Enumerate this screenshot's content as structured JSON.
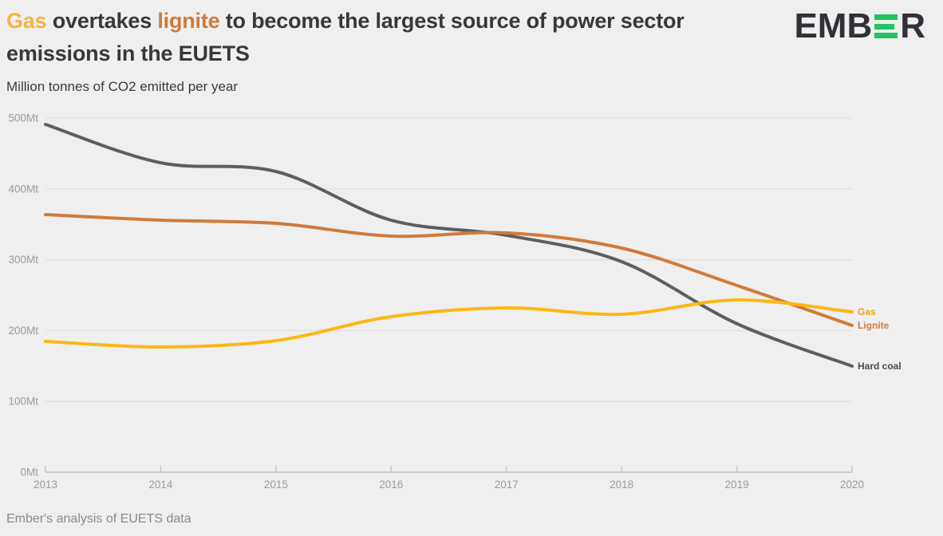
{
  "header": {
    "title_segments": [
      {
        "text": "Gas",
        "color": "#F5B53E"
      },
      {
        "text": " overtakes ",
        "color": "#38383A"
      },
      {
        "text": "lignite",
        "color": "#CF7A3B"
      },
      {
        "text": " to become the largest source of power sector emissions in the EUETS",
        "color": "#38383A"
      }
    ],
    "subtitle": "Million tonnes of CO2 emitted per year",
    "logo": {
      "prefix": "EMB",
      "suffix": "R",
      "bar_color": "#1FC463",
      "text_color": "#303036"
    }
  },
  "chart_data": {
    "type": "line",
    "title": "Gas overtakes lignite to become the largest source of power sector emissions in the EUETS",
    "ylabel": "Million tonnes of CO2 emitted per year",
    "xlabel": "",
    "x": [
      2013,
      2014,
      2015,
      2016,
      2017,
      2018,
      2019,
      2020
    ],
    "xtick_labels": [
      "2013",
      "2014",
      "2015",
      "2016",
      "2017",
      "2018",
      "2019",
      "2020"
    ],
    "ylim": [
      0,
      500
    ],
    "yticks": [
      0,
      100,
      200,
      300,
      400,
      500
    ],
    "ytick_labels": [
      "0Mt",
      "100Mt",
      "200Mt",
      "300Mt",
      "400Mt",
      "500Mt"
    ],
    "grid": "horizontal",
    "grid_color": "#DBDBDB",
    "axis_color": "#C8C8C8",
    "tick_label_color": "#9B9B9B",
    "legend_position": "right-end-labels",
    "series": [
      {
        "name": "Hard coal",
        "color": "#5E5E5E",
        "label_color": "#4A4A4A",
        "values": [
          491,
          437,
          424,
          356,
          335,
          297,
          210,
          150
        ]
      },
      {
        "name": "Lignite",
        "color": "#CF7A3B",
        "label_color": "#CE7B3C",
        "values": [
          364,
          356,
          351,
          333,
          338,
          317,
          264,
          207
        ]
      },
      {
        "name": "Gas",
        "color": "#FDB713",
        "label_color": "#EEA51F",
        "values": [
          185,
          177,
          186,
          220,
          232,
          223,
          243,
          226
        ]
      }
    ]
  },
  "footer": {
    "source": "Ember's analysis of EUETS data"
  }
}
